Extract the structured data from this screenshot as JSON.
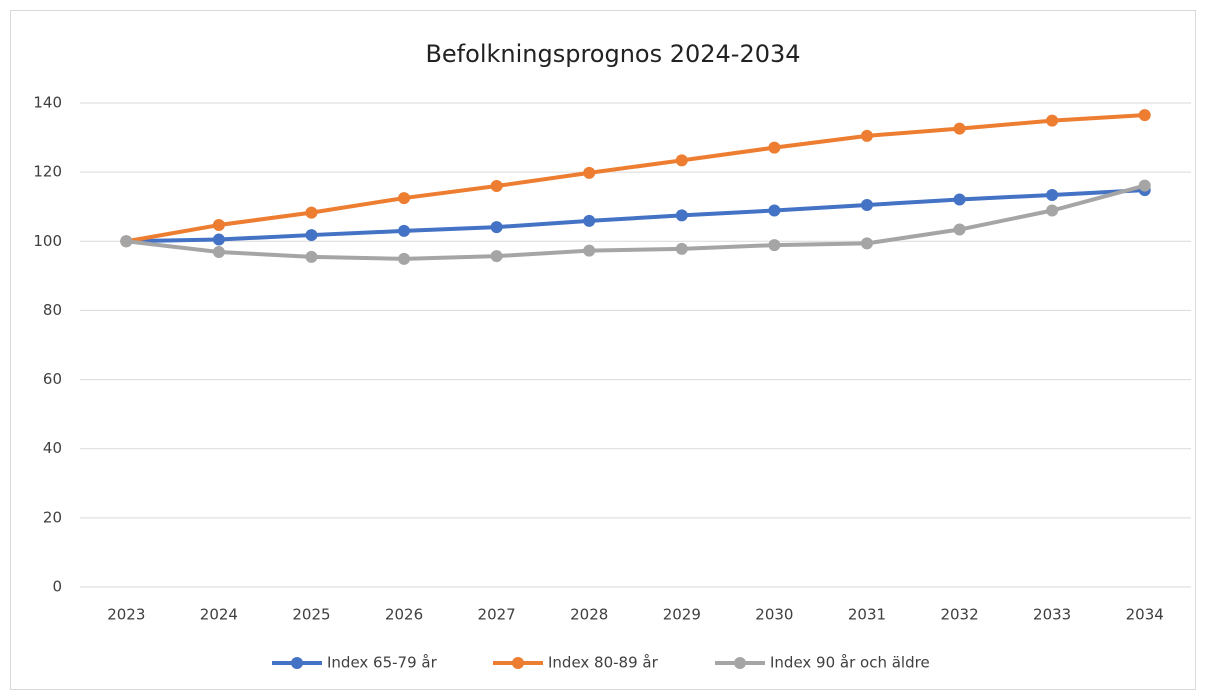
{
  "chart_data": {
    "type": "line",
    "title": "Befolkningsprognos 2024-2034",
    "categories": [
      "2023",
      "2024",
      "2025",
      "2026",
      "2027",
      "2028",
      "2029",
      "2030",
      "2031",
      "2032",
      "2033",
      "2034"
    ],
    "series": [
      {
        "name": "Index 65-79 år",
        "color": "#4472c4",
        "values": [
          100,
          100.5,
          101.8,
          103,
          104.1,
          105.9,
          107.5,
          108.9,
          110.5,
          112.1,
          113.4,
          114.8
        ]
      },
      {
        "name": "Index 80-89 år",
        "color": "#ed7d31",
        "values": [
          100,
          104.7,
          108.3,
          112.5,
          116,
          119.8,
          123.4,
          127.1,
          130.5,
          132.6,
          134.9,
          136.5
        ]
      },
      {
        "name": "Index 90 år och äldre",
        "color": "#a5a5a5",
        "values": [
          100,
          96.9,
          95.5,
          94.9,
          95.7,
          97.3,
          97.8,
          98.9,
          99.4,
          103.4,
          108.9,
          116.1
        ]
      }
    ],
    "ylim": [
      0,
      140
    ],
    "yticks": [
      0,
      20,
      40,
      60,
      80,
      100,
      120,
      140
    ],
    "grid": true,
    "legend": "bottom"
  }
}
